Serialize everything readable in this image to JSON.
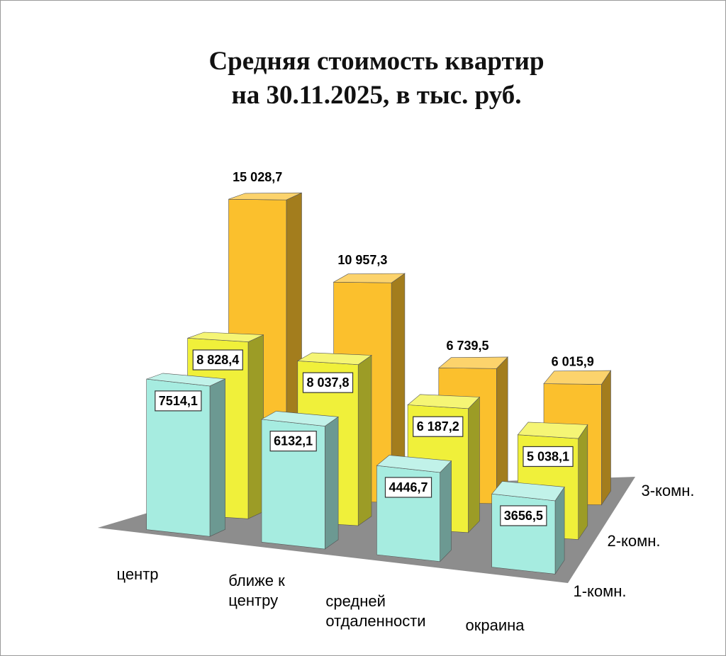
{
  "chart_data": {
    "type": "bar3d",
    "title": "Средняя стоимость квартир\nна 30.11.2025, в тыс. руб.",
    "categories": [
      "центр",
      "ближе к\nцентру",
      "средней\nотдаленности",
      "окраина"
    ],
    "series": [
      {
        "name": "1-комн.",
        "color": "#a6ece0",
        "values": [
          7514.1,
          6132.1,
          4446.7,
          3656.5
        ],
        "value_labels": [
          "7514,1",
          "6132,1",
          "4446,7",
          "3656,5"
        ]
      },
      {
        "name": "2-комн.",
        "color": "#f0f03a",
        "values": [
          8828.4,
          8037.8,
          6187.2,
          5038.1
        ],
        "value_labels": [
          "8 828,4",
          "8 037,8",
          "6 187,2",
          "5 038,1"
        ]
      },
      {
        "name": "3-комн.",
        "color": "#fbc02d",
        "values": [
          15028.7,
          10957.3,
          6739.5,
          6015.9
        ],
        "value_labels": [
          "15 028,7",
          "10 957,3",
          "6 739,5",
          "6 015,9"
        ]
      }
    ]
  }
}
